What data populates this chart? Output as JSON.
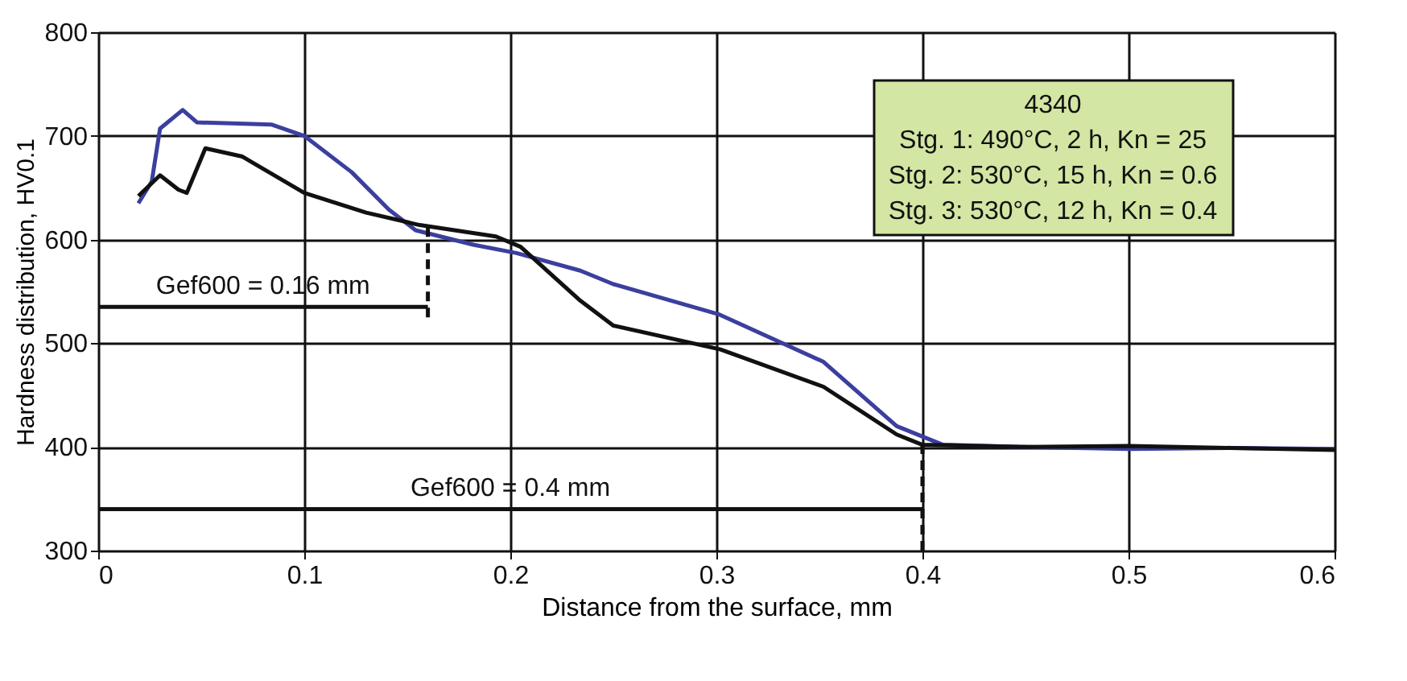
{
  "chart_data": {
    "type": "line",
    "xlabel": "Distance from the surface, mm",
    "ylabel": "Hardness distribution, HV0.1",
    "xlim": [
      0,
      0.6
    ],
    "xticks": [
      0,
      0.1,
      0.2,
      0.3,
      0.4,
      0.5,
      0.6
    ],
    "ylim": [
      300,
      800
    ],
    "yticks": [
      300,
      400,
      500,
      600,
      700,
      800
    ],
    "grid": true,
    "series": [
      {
        "color": "#3b3f9e",
        "x": [
          0.0195,
          0.026,
          0.03,
          0.041,
          0.048,
          0.065,
          0.084,
          0.1,
          0.123,
          0.141,
          0.154,
          0.182,
          0.203,
          0.234,
          0.25,
          0.301,
          0.352,
          0.3875,
          0.41,
          0.45,
          0.5,
          0.55,
          0.6
        ],
        "values": [
          635,
          656,
          707,
          725,
          713,
          712,
          711,
          700,
          665,
          629,
          609,
          595,
          587,
          570,
          557,
          528,
          482,
          420,
          402,
          400,
          398,
          399,
          398
        ]
      },
      {
        "color": "#111111",
        "x": [
          0,
          0.16
        ],
        "values": [
          535,
          535
        ]
      },
      {
        "color": "#111111",
        "x": [
          0.16,
          0.16
        ],
        "values": [
          525,
          612
        ],
        "line_style": "dashed"
      },
      {
        "color": "#111111",
        "x": [
          0,
          0.4
        ],
        "values": [
          340,
          340
        ]
      },
      {
        "color": "#111111",
        "x": [
          0.4,
          0.4
        ],
        "values": [
          300,
          402
        ],
        "line_style": "dashed"
      },
      {
        "color": "#111111",
        "x": [
          0.0195,
          0.03,
          0.039,
          0.043,
          0.052,
          0.07,
          0.1,
          0.13,
          0.156,
          0.193,
          0.205,
          0.234,
          0.25,
          0.302,
          0.352,
          0.3875,
          0.4,
          0.45,
          0.5,
          0.55,
          0.6
        ],
        "values": [
          642,
          662,
          648,
          645,
          688,
          680,
          645,
          626,
          614,
          603,
          593,
          541,
          517,
          494,
          458,
          412,
          402,
          400,
          401,
          399,
          397
        ]
      }
    ],
    "annotations": [
      "4340",
      "Stg. 1: 490°C, 2 h, Kn = 25",
      "Stg. 2: 530°C, 15 h, Kn = 0.6",
      "Stg. 3: 530°C, 12 h, Kn = 0.4",
      {
        "text": "Gef600 = 0.16 mm",
        "x": 0.08,
        "y": 535
      },
      {
        "text": "Gef600 = 0.4 mm",
        "x": 0.2,
        "y": 340
      }
    ]
  }
}
